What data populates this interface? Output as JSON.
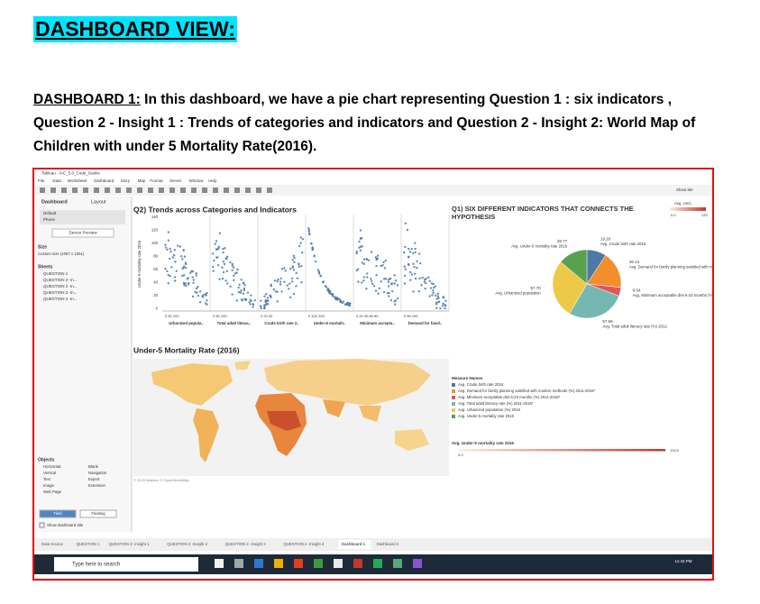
{
  "header": {
    "title": "DASHBOARD VIEW:"
  },
  "intro": {
    "label": "DASHBOARD 1:",
    "text": " In this dashboard, we have a pie chart representing Question 1 : six indicators , Question 2 - Insight 1 : Trends of categories and indicators and Question 2 - Insight 2: World Map of Children with under 5 Mortality Rate(2016)."
  },
  "window": {
    "title": "Tableau - IAC_5.0_Code_Geeks",
    "menu": [
      "File",
      "Data",
      "Worksheet",
      "Dashboard",
      "Story",
      "Map",
      "Format",
      "Server",
      "Window",
      "Help"
    ],
    "show_me": "Show Me"
  },
  "sidebar": {
    "tabs": [
      "Dashboard",
      "Layout"
    ],
    "devices": [
      "Default",
      "Phone"
    ],
    "device_preview": "Device Preview",
    "size_title": "Size",
    "size_value": "Custom size (1057 x 1061)",
    "sheets_title": "Sheets",
    "sheets": [
      "QUESTION 1",
      "QUESTION 2- In...",
      "QUESTION 2 -In...",
      "QUESTION 2 -In...",
      "QUESTION 2 -In..."
    ],
    "objects_title": "Objects",
    "objects": [
      "Horizontal",
      "Blank",
      "Vertical",
      "Navigation",
      "Text",
      "Export",
      "Image",
      "Extension",
      "Web Page"
    ],
    "layout_modes": [
      "Tiled",
      "Floating"
    ],
    "show_title": "Show dashboard title"
  },
  "q2": {
    "title": "Q2) Trends across Categories and Indicators",
    "y_label": "Under-5 mortality rate 2016",
    "yticks": [
      140,
      120,
      100,
      80,
      60,
      40,
      20,
      0
    ],
    "panels": [
      {
        "label": "Urbanized popula..",
        "ticks": "0        50       100"
      },
      {
        "label": "Total adult literac..",
        "ticks": "0        50       100"
      },
      {
        "label": "Crude birth rate 2..",
        "ticks": "0     20     40"
      },
      {
        "label": "Under-5 mortalit..",
        "ticks": "0      100     200"
      },
      {
        "label": "Minimum accepta..",
        "ticks": "0  20  40  60  80"
      },
      {
        "label": "Demand for famil..",
        "ticks": "0        50       100"
      }
    ]
  },
  "map": {
    "title": "Under-5 Mortality Rate (2016)",
    "credit": "© 2020 Mapbox © OpenStreetMap"
  },
  "q1": {
    "title": "Q1) SIX DIFFERENT INDICATORS THAT CONNECTS THE HYPOTHESIS",
    "names": [
      "Avg. Crude birth rate 2016",
      "Avg. Demand for family planning satisfied with modern methods (%) 2011-2016*",
      "Avg. Minimum acceptable diet 6-23 months (%) 2011-2016*",
      "Avg. Total adult literacy rate (%) 2011-2016*",
      "Avg. Urbanized population (%) 2016",
      "Avg. Under-5 mortality rate 2016"
    ],
    "labels": [
      "Avg. Crude birth rate 2016",
      "Avg. Demand for family planning satisfied with modern methods (%) 2011-",
      "Avg. Minimum acceptable diet 6-23 months (%) 201",
      "Avg. Total adult literacy rate (%) 2011-",
      "Avg. Urbanized population",
      "Avg. Under-5 mortality rate 2016"
    ],
    "values": [
      19.2,
      36.13,
      8.54,
      57.66,
      57.7,
      28.77
    ],
    "value_labels": [
      "19.20",
      "36.13",
      "8.54",
      "57.66",
      "57.70",
      "28.77"
    ],
    "colors": [
      "#4e79a7",
      "#f28e2b",
      "#e15759",
      "#76b7b2",
      "#edc948",
      "#59a14f"
    ],
    "legend_title": "Measure Names"
  },
  "scale": {
    "title": "Avg. Under-5 mortality rate 2016",
    "short_title": "Avg. Und..",
    "min": "0.0",
    "max": "133.0",
    "short_max": "133"
  },
  "tabs": [
    "Data Source",
    "QUESTION 1",
    "QUESTION 2- Insight 1",
    "QUESTION 2 -Insight 2",
    "QUESTION 2 -Insight 3",
    "QUESTION 2 -Insight 4",
    "Dashboard 1",
    "Dashboard 2"
  ],
  "taskbar": {
    "search": "Type here to search",
    "time": "11:43 PM"
  }
}
